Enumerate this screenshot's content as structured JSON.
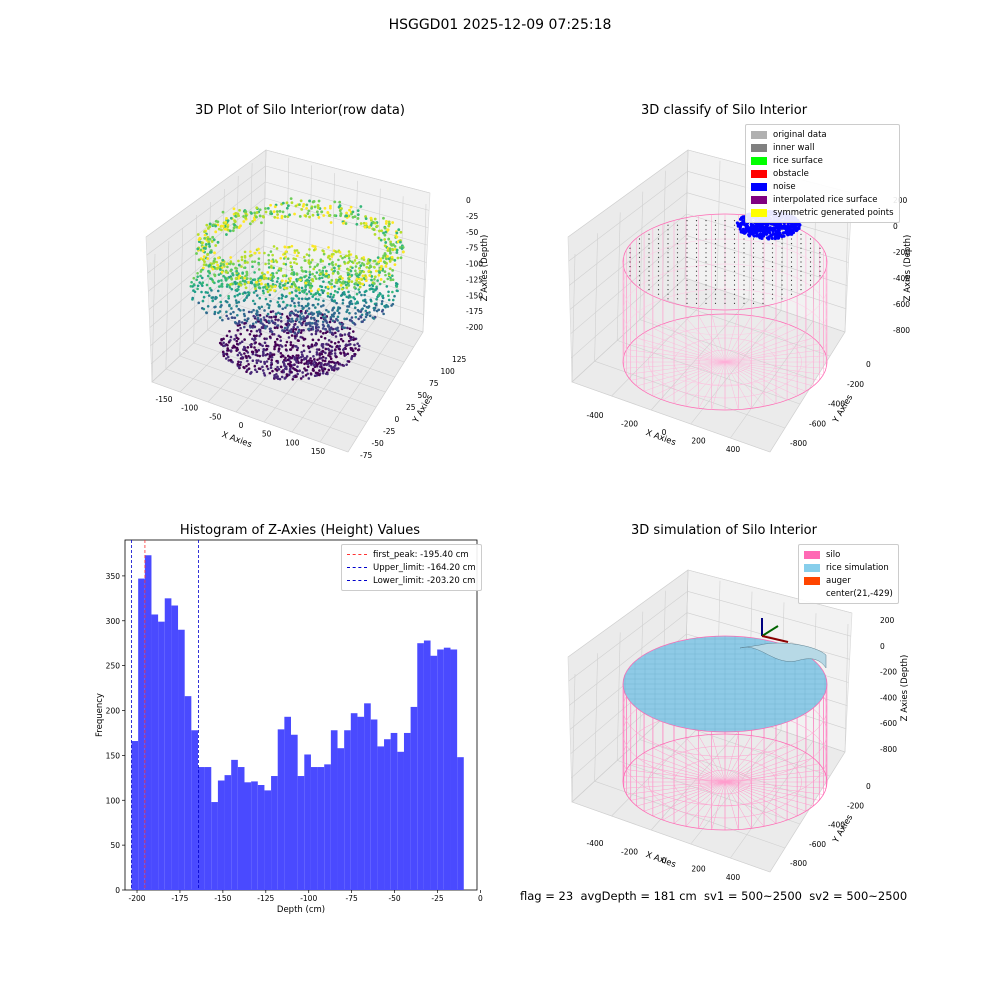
{
  "suptitle": "HSGGD01 2025-12-09 07:25:18",
  "footer": "flag = 23  avgDepth = 181 cm  sv1 = 500~2500  sv2 = 500~2500",
  "chart_data": [
    {
      "type": "scatter",
      "title": "3D Plot of Silo Interior(row data)",
      "xlabel": "X Axies",
      "ylabel": "Y Axies",
      "zlabel": "Z Axies (Depth)",
      "xticks": [
        "-150",
        "-100",
        "-50",
        "0",
        "50",
        "100",
        "150"
      ],
      "yticks": [
        "-75",
        "-50",
        "-25",
        "0",
        "25",
        "50",
        "75",
        "100",
        "125"
      ],
      "zticks": [
        "0",
        "-25",
        "-50",
        "-75",
        "-100",
        "-125",
        "-150",
        "-175",
        "-200"
      ],
      "colormap": "viridis",
      "xlim": [
        -175,
        175
      ],
      "ylim": [
        -75,
        140
      ],
      "zlim": [
        -210,
        0
      ]
    },
    {
      "type": "scatter",
      "title": "3D classify of Silo Interior",
      "xlabel": "X Axies",
      "ylabel": "Y Axies",
      "zlabel": "Z Axies (Depth)",
      "xticks": [
        "-400",
        "-200",
        "0",
        "200",
        "400"
      ],
      "yticks": [
        "0",
        "-200",
        "-400",
        "-600",
        "-800"
      ],
      "zticks": [
        "200",
        "0",
        "-200",
        "-400",
        "-600",
        "-800"
      ],
      "legend": [
        {
          "label": "original data",
          "color": "#b0b0b0"
        },
        {
          "label": "inner wall",
          "color": "#808080"
        },
        {
          "label": "rice surface",
          "color": "#00ff00"
        },
        {
          "label": "obstacle",
          "color": "#ff0000"
        },
        {
          "label": "noise",
          "color": "#0000ff"
        },
        {
          "label": "interpolated rice surface",
          "color": "#800080"
        },
        {
          "label": "symmetric generated points",
          "color": "#ffff00"
        }
      ],
      "legend_position": "upper right"
    },
    {
      "type": "bar",
      "title": "Histogram of Z-Axies (Height) Values",
      "xlabel": "Depth (cm)",
      "ylabel": "Frequency",
      "xlim": [
        -207,
        -2
      ],
      "ylim": [
        0,
        390
      ],
      "xticks": [
        "-200",
        "-175",
        "-150",
        "-125",
        "-100",
        "-75",
        "-50",
        "-25",
        "0"
      ],
      "yticks": [
        "0",
        "50",
        "100",
        "150",
        "200",
        "250",
        "300",
        "350"
      ],
      "bin_start": -203.2,
      "bin_width": 3.87,
      "values": [
        166,
        347,
        373,
        307,
        299,
        325,
        317,
        290,
        216,
        178,
        137,
        137,
        98,
        122,
        128,
        145,
        137,
        120,
        121,
        117,
        111,
        127,
        179,
        193,
        173,
        127,
        151,
        137,
        137,
        140,
        178,
        158,
        178,
        197,
        193,
        208,
        190,
        160,
        168,
        175,
        154,
        175,
        204,
        275,
        278,
        261,
        268,
        270,
        268,
        148
      ],
      "bar_color": "#4a4aff",
      "vlines": [
        {
          "label": "first_peak: -195.40 cm",
          "value": -195.4,
          "color": "#ff3333"
        },
        {
          "label": "Upper_limit: -164.20 cm",
          "value": -164.2,
          "color": "#0000cc"
        },
        {
          "label": "Lower_limit: -203.20 cm",
          "value": -203.2,
          "color": "#0000cc"
        }
      ],
      "legend_position": "upper right"
    },
    {
      "type": "scatter",
      "title": "3D simulation of Silo Interior",
      "xlabel": "X Axies",
      "ylabel": "Y Axies",
      "zlabel": "Z Axies (Depth)",
      "xticks": [
        "-400",
        "-200",
        "0",
        "200",
        "400"
      ],
      "yticks": [
        "0",
        "-200",
        "-400",
        "-600",
        "-800"
      ],
      "zticks": [
        "200",
        "0",
        "-200",
        "-400",
        "-600",
        "-800"
      ],
      "legend": [
        {
          "label": "silo",
          "color": "#ff69b4"
        },
        {
          "label": "rice simulation",
          "color": "#87ceeb"
        },
        {
          "label": "auger",
          "color": "#ff4500"
        },
        {
          "label": "center(21,-429)",
          "color": null
        }
      ],
      "legend_position": "upper right"
    }
  ]
}
